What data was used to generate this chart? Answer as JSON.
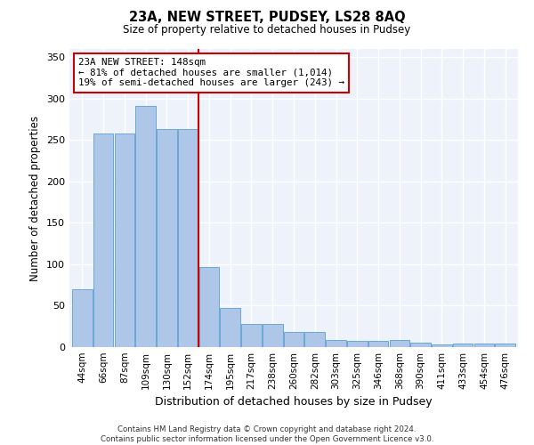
{
  "title": "23A, NEW STREET, PUDSEY, LS28 8AQ",
  "subtitle": "Size of property relative to detached houses in Pudsey",
  "xlabel": "Distribution of detached houses by size in Pudsey",
  "ylabel": "Number of detached properties",
  "footer_line1": "Contains HM Land Registry data © Crown copyright and database right 2024.",
  "footer_line2": "Contains public sector information licensed under the Open Government Licence v3.0.",
  "categories": [
    "44sqm",
    "66sqm",
    "87sqm",
    "109sqm",
    "130sqm",
    "152sqm",
    "174sqm",
    "195sqm",
    "217sqm",
    "238sqm",
    "260sqm",
    "282sqm",
    "303sqm",
    "325sqm",
    "346sqm",
    "368sqm",
    "390sqm",
    "411sqm",
    "433sqm",
    "454sqm",
    "476sqm"
  ],
  "values": [
    70,
    258,
    258,
    291,
    263,
    263,
    97,
    47,
    28,
    28,
    18,
    18,
    9,
    7,
    7,
    9,
    5,
    3,
    4,
    4,
    4
  ],
  "bar_color": "#aec6e8",
  "bar_edge_color": "#5a9fd4",
  "background_color": "#eef2fa",
  "grid_color": "#ffffff",
  "red_line_x": 5.5,
  "annotation_text": "23A NEW STREET: 148sqm\n← 81% of detached houses are smaller (1,014)\n19% of semi-detached houses are larger (243) →",
  "annotation_box_color": "#ffffff",
  "annotation_box_edge": "#cc0000",
  "red_line_color": "#cc0000",
  "ylim": [
    0,
    360
  ],
  "yticks": [
    0,
    50,
    100,
    150,
    200,
    250,
    300,
    350
  ]
}
